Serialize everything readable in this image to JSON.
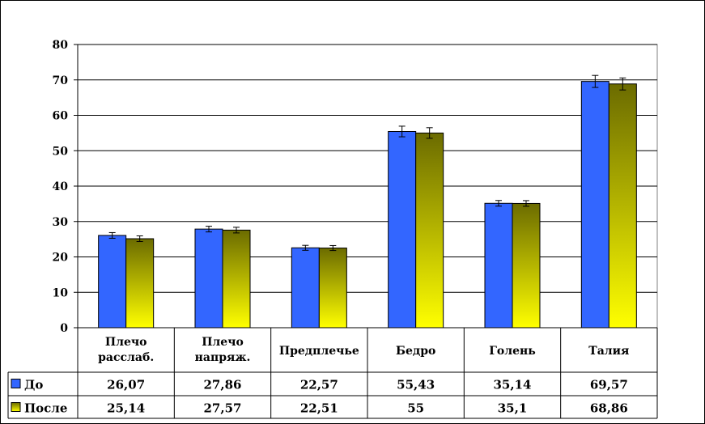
{
  "chart_data": {
    "type": "bar",
    "title": "",
    "xlabel": "",
    "ylabel": "",
    "ylim": [
      0,
      80
    ],
    "yticks": [
      0,
      10,
      20,
      30,
      40,
      50,
      60,
      70,
      80
    ],
    "grid": true,
    "legend": "data-table-left",
    "categories": [
      [
        "Плечо",
        "расслаб."
      ],
      [
        "Плечо",
        "напряж."
      ],
      [
        "Предплечье"
      ],
      [
        "Бедро"
      ],
      [
        "Голень"
      ],
      [
        "Талия"
      ]
    ],
    "series": [
      {
        "name": "До",
        "values": [
          26.07,
          27.86,
          22.57,
          55.43,
          35.14,
          69.57
        ],
        "labels": [
          "26,07",
          "27,86",
          "22,57",
          "55,43",
          "35,14",
          "69,57"
        ],
        "error": [
          0.8,
          0.8,
          0.7,
          1.5,
          0.8,
          1.7
        ],
        "color": "#3366ff"
      },
      {
        "name": "После",
        "values": [
          25.14,
          27.57,
          22.51,
          55,
          35.1,
          68.86
        ],
        "labels": [
          "25,14",
          "27,57",
          "22,51",
          "55",
          "35,1",
          "68,86"
        ],
        "error": [
          0.8,
          0.8,
          0.7,
          1.5,
          0.8,
          1.7
        ],
        "color_top": "#6b6b00",
        "color_bottom": "#ffff00"
      }
    ]
  }
}
